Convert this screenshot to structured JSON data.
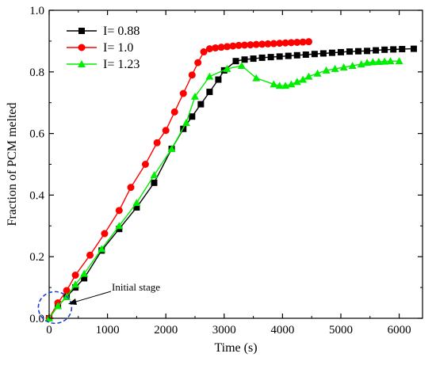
{
  "chart_data": {
    "type": "line",
    "xlabel": "Time (s)",
    "ylabel": "Fraction of PCM melted",
    "xlim": [
      0,
      6400
    ],
    "ylim": [
      0,
      1.0
    ],
    "xticks": [
      0,
      1000,
      2000,
      3000,
      4000,
      5000,
      6000
    ],
    "yticks": [
      0.0,
      0.2,
      0.4,
      0.6,
      0.8,
      1.0
    ],
    "ytick_labels": [
      "0.0",
      "0.2",
      "0.4",
      "0.6",
      "0.8",
      "1.0"
    ],
    "legend_position": "top-left",
    "grid": false,
    "annotation": "Initial stage",
    "series": [
      {
        "name": "I= 0.88",
        "color": "#000000",
        "marker": "square",
        "x": [
          0,
          150,
          300,
          450,
          600,
          900,
          1200,
          1500,
          1800,
          2100,
          2300,
          2450,
          2600,
          2750,
          2900,
          3000,
          3200,
          3350,
          3500,
          3650,
          3800,
          3950,
          4100,
          4250,
          4400,
          4550,
          4700,
          4850,
          5000,
          5150,
          5300,
          5450,
          5600,
          5750,
          5900,
          6050,
          6250
        ],
        "y": [
          0.0,
          0.04,
          0.07,
          0.1,
          0.13,
          0.22,
          0.29,
          0.36,
          0.44,
          0.55,
          0.615,
          0.655,
          0.695,
          0.735,
          0.775,
          0.805,
          0.835,
          0.84,
          0.843,
          0.846,
          0.848,
          0.85,
          0.852,
          0.854,
          0.856,
          0.858,
          0.86,
          0.862,
          0.864,
          0.866,
          0.867,
          0.868,
          0.87,
          0.872,
          0.873,
          0.874,
          0.875
        ]
      },
      {
        "name": "I= 1.0",
        "color": "#ff0000",
        "marker": "circle",
        "x": [
          0,
          150,
          300,
          450,
          700,
          950,
          1200,
          1400,
          1650,
          1850,
          2000,
          2150,
          2300,
          2450,
          2550,
          2650,
          2750,
          2850,
          2950,
          3050,
          3150,
          3250,
          3350,
          3450,
          3550,
          3650,
          3750,
          3850,
          3950,
          4050,
          4150,
          4250,
          4350,
          4450
        ],
        "y": [
          0.0,
          0.05,
          0.09,
          0.14,
          0.205,
          0.275,
          0.35,
          0.425,
          0.5,
          0.57,
          0.61,
          0.67,
          0.73,
          0.79,
          0.83,
          0.865,
          0.875,
          0.878,
          0.88,
          0.882,
          0.884,
          0.886,
          0.887,
          0.888,
          0.889,
          0.89,
          0.891,
          0.892,
          0.893,
          0.894,
          0.895,
          0.896,
          0.897,
          0.898
        ]
      },
      {
        "name": "I= 1.23",
        "color": "#00ee00",
        "marker": "triangle",
        "x": [
          0,
          150,
          300,
          450,
          600,
          900,
          1200,
          1500,
          1800,
          2100,
          2350,
          2500,
          2750,
          3050,
          3300,
          3550,
          3850,
          3950,
          4050,
          4150,
          4250,
          4350,
          4450,
          4600,
          4750,
          4900,
          5050,
          5200,
          5350,
          5450,
          5550,
          5650,
          5750,
          5850,
          6000
        ],
        "y": [
          0.0,
          0.04,
          0.07,
          0.11,
          0.145,
          0.225,
          0.3,
          0.375,
          0.465,
          0.55,
          0.635,
          0.72,
          0.785,
          0.81,
          0.82,
          0.78,
          0.76,
          0.755,
          0.755,
          0.76,
          0.768,
          0.775,
          0.785,
          0.795,
          0.805,
          0.81,
          0.815,
          0.82,
          0.825,
          0.83,
          0.832,
          0.833,
          0.834,
          0.835,
          0.835
        ]
      }
    ]
  }
}
